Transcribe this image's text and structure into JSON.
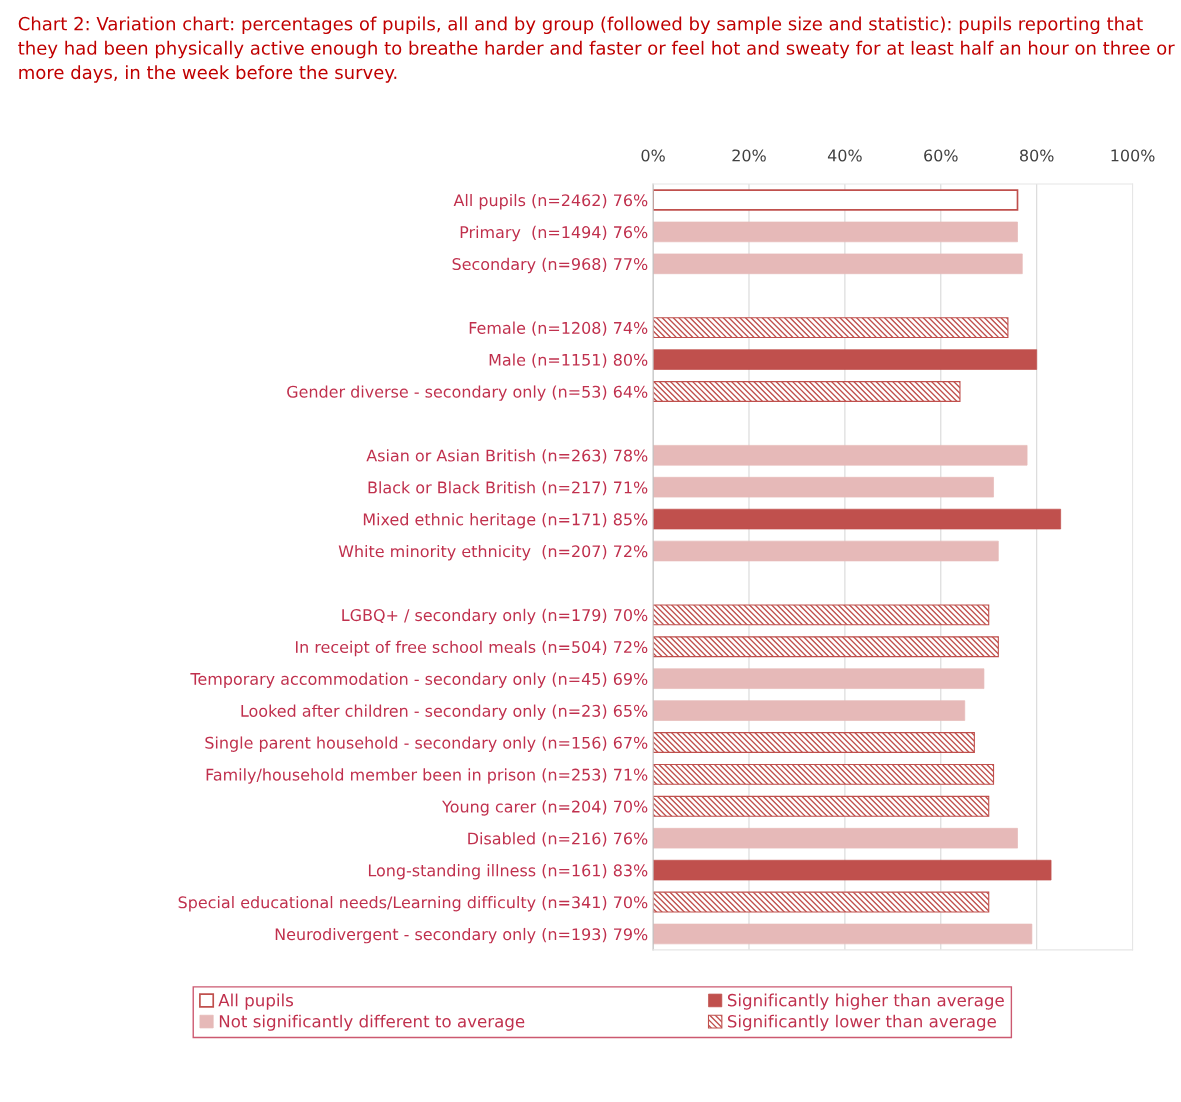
{
  "chart_data": {
    "type": "bar",
    "orientation": "horizontal",
    "title": "Chart 2: Variation chart: percentages of pupils, all and by group (followed by sample size and statistic): pupils reporting that they had been physically active enough to breathe harder and faster or feel hot and sweaty for at least half an hour on three or more days, in the week before the survey.",
    "categories": [
      "All pupils (n=2462) 76%",
      "Primary  (n=1494) 76%",
      "Secondary (n=968) 77%",
      null,
      "Female (n=1208) 74%",
      "Male (n=1151) 80%",
      "Gender diverse - secondary only (n=53) 64%",
      null,
      "Asian or Asian British (n=263) 78%",
      "Black or Black British (n=217) 71%",
      "Mixed ethnic heritage (n=171) 85%",
      "White minority ethnicity  (n=207) 72%",
      null,
      "LGBQ+ / secondary only (n=179) 70%",
      "In receipt of free school meals (n=504) 72%",
      "Temporary accommodation - secondary only (n=45) 69%",
      "Looked after children - secondary only (n=23) 65%",
      "Single parent household - secondary only (n=156) 67%",
      "Family/household member been in prison (n=253) 71%",
      "Young carer (n=204) 70%",
      "Disabled (n=216) 76%",
      "Long-standing illness (n=161) 83%",
      "Special educational needs/Learning difficulty (n=341) 70%",
      "Neurodivergent - secondary only (n=193) 79%"
    ],
    "series": [
      {
        "name": "All pupils",
        "color": "#c0504d",
        "values": [
          76,
          null,
          null,
          null,
          null,
          null,
          null,
          null,
          null,
          null,
          null,
          null,
          null,
          null,
          null,
          null,
          null,
          null,
          null,
          null,
          null,
          null,
          null,
          null
        ]
      },
      {
        "name": "Not significantly different to average",
        "color": "#e6b9b8",
        "values": [
          null,
          76,
          77,
          null,
          null,
          null,
          null,
          null,
          78,
          71,
          null,
          72,
          null,
          null,
          null,
          69,
          65,
          null,
          null,
          null,
          76,
          null,
          null,
          79
        ]
      },
      {
        "name": "Significantly higher than average",
        "color": "#c0504d",
        "values": [
          null,
          null,
          null,
          null,
          null,
          80,
          null,
          null,
          null,
          null,
          85,
          null,
          null,
          null,
          null,
          null,
          null,
          null,
          null,
          null,
          null,
          83,
          null,
          null
        ]
      },
      {
        "name": "Significantly lower than average",
        "color": "#c0504d",
        "values": [
          null,
          null,
          null,
          null,
          74,
          null,
          64,
          null,
          null,
          null,
          null,
          null,
          null,
          70,
          72,
          null,
          null,
          67,
          71,
          70,
          null,
          null,
          70,
          null
        ]
      }
    ],
    "xlim": [
      0,
      100
    ],
    "xticks": [
      {
        "value": 0,
        "label": "0%"
      },
      {
        "value": 20,
        "label": "20%"
      },
      {
        "value": 40,
        "label": "40%"
      },
      {
        "value": 60,
        "label": "60%"
      },
      {
        "value": 80,
        "label": "80%"
      },
      {
        "value": 100,
        "label": "100%"
      }
    ],
    "grid": "x",
    "legend": "bottom"
  }
}
